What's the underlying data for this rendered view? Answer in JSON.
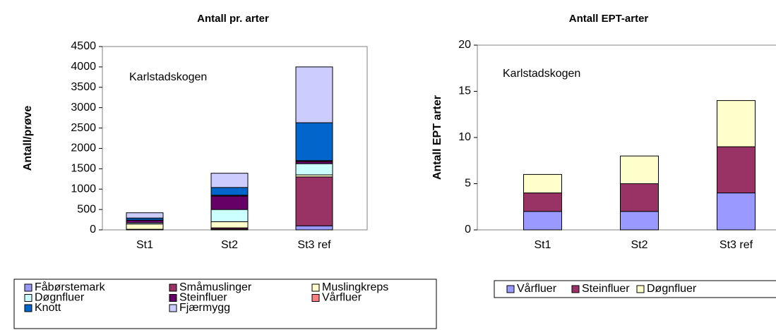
{
  "chart_data": [
    {
      "type": "bar",
      "stacked": true,
      "title": "Antall pr. arter",
      "ylabel": "Antall/prøve",
      "annotation": "Karlstadskogen",
      "categories": [
        "St1",
        "St2",
        "St3 ref"
      ],
      "ylim": [
        0,
        4500
      ],
      "yticks": [
        0,
        500,
        1000,
        1500,
        2000,
        2500,
        3000,
        3500,
        4000,
        4500
      ],
      "grid": false,
      "series": [
        {
          "name": "Fåbørstemark",
          "color": "#9999ff",
          "values": [
            10,
            20,
            100
          ]
        },
        {
          "name": "Småmuslinger",
          "color": "#993366",
          "values": [
            5,
            30,
            1200
          ]
        },
        {
          "name": "Muslingkreps",
          "color": "#ffffcc",
          "values": [
            130,
            150,
            50
          ]
        },
        {
          "name": "Døgnfluer",
          "color": "#ccffff",
          "values": [
            30,
            300,
            275
          ]
        },
        {
          "name": "Steinfluer",
          "color": "#660066",
          "values": [
            60,
            330,
            55
          ]
        },
        {
          "name": "Vårfluer",
          "color": "#ff8080",
          "values": [
            5,
            20,
            20
          ]
        },
        {
          "name": "Knott",
          "color": "#0066cc",
          "values": [
            50,
            190,
            930
          ]
        },
        {
          "name": "Fjærmygg",
          "color": "#ccccff",
          "values": [
            130,
            350,
            1370
          ]
        }
      ]
    },
    {
      "type": "bar",
      "stacked": true,
      "title": "Antall EPT-arter",
      "ylabel": "Antall EPT arter",
      "annotation": "Karlstadskogen",
      "categories": [
        "St1",
        "St2",
        "St3 ref"
      ],
      "ylim": [
        0,
        20
      ],
      "yticks": [
        0,
        5,
        10,
        15,
        20
      ],
      "grid": false,
      "series": [
        {
          "name": "Vårfluer",
          "color": "#9999ff",
          "values": [
            2,
            2,
            4
          ]
        },
        {
          "name": "Steinfluer",
          "color": "#993366",
          "values": [
            2,
            3,
            5
          ]
        },
        {
          "name": "Døgnfluer",
          "color": "#ffffcc",
          "values": [
            2,
            3,
            5
          ]
        }
      ]
    }
  ]
}
